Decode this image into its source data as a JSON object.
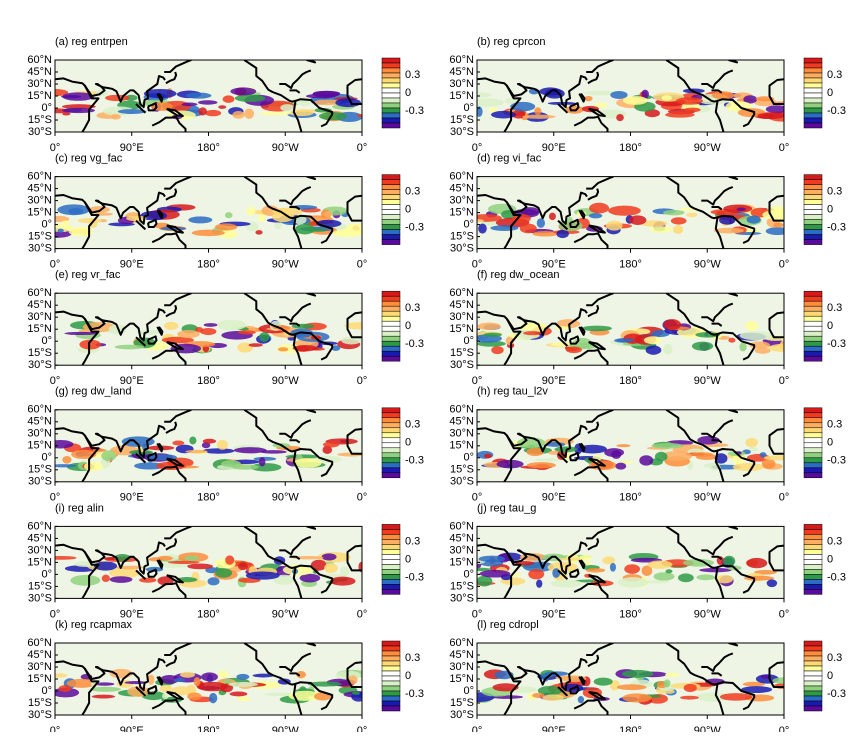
{
  "panels": [
    {
      "title": "(a) reg entrpen"
    },
    {
      "title": "(b) reg cprcon"
    },
    {
      "title": "(c) reg vg_fac"
    },
    {
      "title": "(d) reg vi_fac"
    },
    {
      "title": "(e) reg vr_fac"
    },
    {
      "title": "(f) reg dw_ocean"
    },
    {
      "title": "(g) reg dw_land"
    },
    {
      "title": "(h) reg tau_l2v"
    },
    {
      "title": "(i) reg alin"
    },
    {
      "title": "(j) reg tau_g"
    },
    {
      "title": "(k) reg rcapmax"
    },
    {
      "title": "(l) reg cdropl"
    }
  ],
  "map_axes": {
    "lat_ticks": [
      {
        "value": 60,
        "label": "60°N"
      },
      {
        "value": 45,
        "label": "45°N"
      },
      {
        "value": 30,
        "label": "30°N"
      },
      {
        "value": 15,
        "label": "15°N"
      },
      {
        "value": 0,
        "label": "0°"
      },
      {
        "value": -15,
        "label": "15°S"
      },
      {
        "value": -30,
        "label": "30°S"
      }
    ],
    "lon_ticks": [
      {
        "value": 0,
        "label": "0°"
      },
      {
        "value": 90,
        "label": "90°E"
      },
      {
        "value": 180,
        "label": "180°"
      },
      {
        "value": 270,
        "label": "90°W"
      },
      {
        "value": 360,
        "label": "0°"
      }
    ]
  },
  "colorbar": {
    "colors": [
      "#d7191c",
      "#f03b20",
      "#fd8d3c",
      "#fdae61",
      "#fed976",
      "#ffff99",
      "#ffffff",
      "#ffffff",
      "#d9f0c8",
      "#8fd17e",
      "#2e9a48",
      "#2b6cc4",
      "#1a1ab0",
      "#5a0a9c"
    ],
    "labels": [
      0.3,
      0,
      -0.3
    ]
  }
}
